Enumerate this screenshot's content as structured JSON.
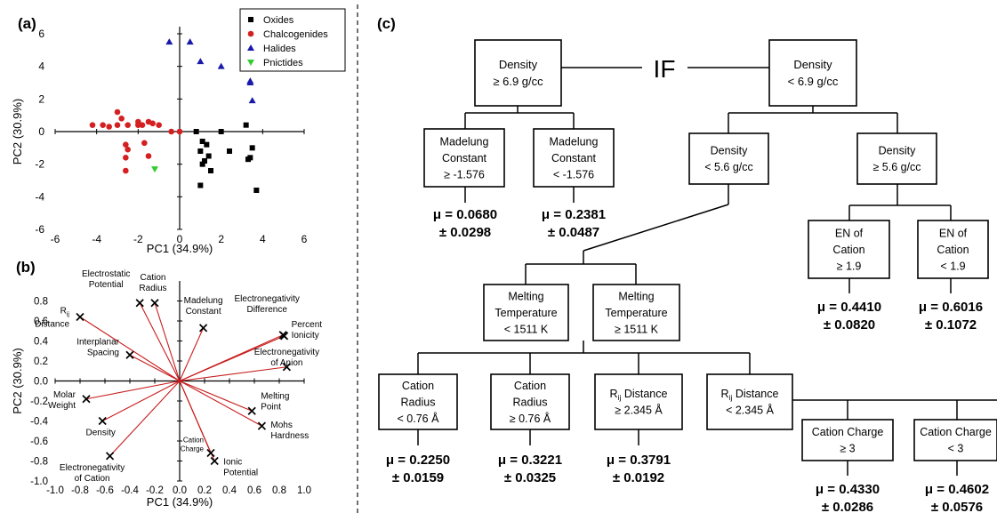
{
  "panels": {
    "a": {
      "label": "(a)"
    },
    "b": {
      "label": "(b)"
    },
    "c": {
      "label": "(c)"
    }
  },
  "chart_data": [
    {
      "type": "scatter",
      "panel": "(a)",
      "xlabel": "PC1 (34.9%)",
      "ylabel": "PC2 (30.9%)",
      "xlim": [
        -6,
        6
      ],
      "ylim": [
        -6,
        6
      ],
      "xticks": [
        "-6",
        "-4",
        "-2",
        "0",
        "2",
        "4",
        "6"
      ],
      "yticks": [
        "-6",
        "-4",
        "-2",
        "0",
        "2",
        "4",
        "6"
      ],
      "legend_position": "top-right",
      "series": [
        {
          "name": "Oxides",
          "color": "#000000",
          "marker": "square",
          "x": [
            0.8,
            1.1,
            1.3,
            1.0,
            1.4,
            1.2,
            1.5,
            1.0,
            2.0,
            2.4,
            3.2,
            3.5,
            3.3,
            3.4,
            3.7,
            1.1
          ],
          "y": [
            0.0,
            -0.6,
            -0.8,
            -1.2,
            -1.5,
            -1.8,
            -2.4,
            -3.3,
            0.0,
            -1.2,
            0.4,
            -1.0,
            -1.7,
            -1.6,
            -3.6,
            -2.0
          ]
        },
        {
          "name": "Chalcogenides",
          "color": "#d42020",
          "marker": "circle",
          "x": [
            -4.2,
            -3.7,
            -3.4,
            -3.0,
            -2.5,
            -2.0,
            -1.5,
            -1.3,
            -1.0,
            -3.0,
            -2.8,
            -2.6,
            -1.7,
            -2.5,
            -2.6,
            -2.6,
            -2.0,
            -1.8,
            -1.5,
            0.0,
            -0.4
          ],
          "y": [
            0.4,
            0.4,
            0.3,
            0.4,
            0.4,
            0.4,
            0.6,
            0.5,
            0.4,
            1.2,
            0.8,
            -0.8,
            -0.7,
            -1.1,
            -1.6,
            -2.4,
            0.6,
            0.4,
            -1.5,
            0.0,
            0.0
          ],
          "note": "approximate"
        },
        {
          "name": "Halides",
          "color": "#1a1aaa",
          "marker": "triangle",
          "x": [
            -0.5,
            0.5,
            1.0,
            2.0,
            3.4,
            3.5,
            3.4
          ],
          "y": [
            5.5,
            5.5,
            4.3,
            4.0,
            3.0,
            1.9,
            3.1
          ]
        },
        {
          "name": "Pnictides",
          "color": "#33cc33",
          "marker": "triangle-down",
          "x": [
            -1.2
          ],
          "y": [
            -2.3
          ]
        }
      ]
    },
    {
      "type": "scatter",
      "panel": "(b)",
      "subtype": "loading-plot",
      "xlabel": "PC1 (34.9%)",
      "ylabel": "PC2 (30.9%)",
      "xlim": [
        -1.0,
        1.0
      ],
      "ylim": [
        -1.0,
        1.0
      ],
      "xticks": [
        "-1.0",
        "-0.8",
        "-0.6",
        "-0.4",
        "-0.2",
        "0.0",
        "0.2",
        "0.4",
        "0.6",
        "0.8",
        "1.0"
      ],
      "yticks": [
        "-1.0",
        "-0.8",
        "-0.6",
        "-0.4",
        "-0.2",
        "0.0",
        "0.2",
        "0.4",
        "0.6",
        "0.8"
      ],
      "line_color": "#c81e1e",
      "points": [
        {
          "label": "Electrostatic\nPotential",
          "x": -0.32,
          "y": 0.78
        },
        {
          "label": "Cation\nRadius",
          "x": -0.2,
          "y": 0.78
        },
        {
          "label": "Madelung\nConstant",
          "x": 0.19,
          "y": 0.53
        },
        {
          "label": "Electronegativity\nDifference",
          "x": 0.83,
          "y": 0.46
        },
        {
          "label": "Percent\nIonicity",
          "x": 0.84,
          "y": 0.45
        },
        {
          "label": "Electronegativity\nof Anion",
          "x": 0.86,
          "y": 0.14
        },
        {
          "label": "Rij\nDistance",
          "x": -0.8,
          "y": 0.64
        },
        {
          "label": "Interplanar\nSpacing",
          "x": -0.4,
          "y": 0.26
        },
        {
          "label": "Molar\nWeight",
          "x": -0.75,
          "y": -0.18
        },
        {
          "label": "Density",
          "x": -0.62,
          "y": -0.4
        },
        {
          "label": "Electronegativity\nof Cation",
          "x": -0.56,
          "y": -0.75
        },
        {
          "label": "Melting\nPoint",
          "x": 0.58,
          "y": -0.3
        },
        {
          "label": "Mohs\nHardness",
          "x": 0.66,
          "y": -0.45
        },
        {
          "label": "Cation\nCharge",
          "x": 0.25,
          "y": -0.72
        },
        {
          "label": "Ionic\nPotential",
          "x": 0.28,
          "y": -0.8
        }
      ]
    }
  ],
  "tree": {
    "if_label": "IF",
    "root_left": [
      "Density",
      "≥ 6.9 g/cc"
    ],
    "root_right": [
      "Density",
      "< 6.9 g/cc"
    ],
    "mad_ge": [
      "Madelung",
      "Constant",
      "≥ -1.576"
    ],
    "mad_lt": [
      "Madelung",
      "Constant",
      "< -1.576"
    ],
    "dens_lt56": [
      "Density",
      "< 5.6 g/cc"
    ],
    "dens_ge56": [
      "Density",
      "≥ 5.6 g/cc"
    ],
    "en_ge": [
      "EN of",
      "Cation",
      "≥ 1.9"
    ],
    "en_lt": [
      "EN of",
      "Cation",
      "< 1.9"
    ],
    "melt_lt": [
      "Melting",
      "Temperature",
      "< 1511 K"
    ],
    "melt_ge": [
      "Melting",
      "Temperature",
      "≥ 1511 K"
    ],
    "rad_lt": [
      "Cation",
      "Radius",
      "< 0.76 Å"
    ],
    "rad_ge": [
      "Cation",
      "Radius",
      "≥ 0.76 Å"
    ],
    "rij_ge": [
      "Rij Distance",
      "≥ 2.345 Å"
    ],
    "rij_lt": [
      "Rij Distance",
      "< 2.345 Å"
    ],
    "charge_ge": [
      "Cation Charge",
      "≥ 3"
    ],
    "charge_lt": [
      "Cation Charge",
      "< 3"
    ],
    "leaves": {
      "mad_ge": [
        "μ = 0.0680",
        "± 0.0298"
      ],
      "mad_lt": [
        "μ = 0.2381",
        "± 0.0487"
      ],
      "en_ge": [
        "μ = 0.4410",
        "± 0.0820"
      ],
      "en_lt": [
        "μ = 0.6016",
        "± 0.1072"
      ],
      "rad_lt": [
        "μ = 0.2250",
        "± 0.0159"
      ],
      "rad_ge": [
        "μ = 0.3221",
        "± 0.0325"
      ],
      "rij_ge": [
        "μ = 0.3791",
        "± 0.0192"
      ],
      "charge_ge": [
        "μ = 0.4330",
        "± 0.0286"
      ],
      "charge_lt": [
        "μ = 0.4602",
        "± 0.0576"
      ]
    }
  }
}
